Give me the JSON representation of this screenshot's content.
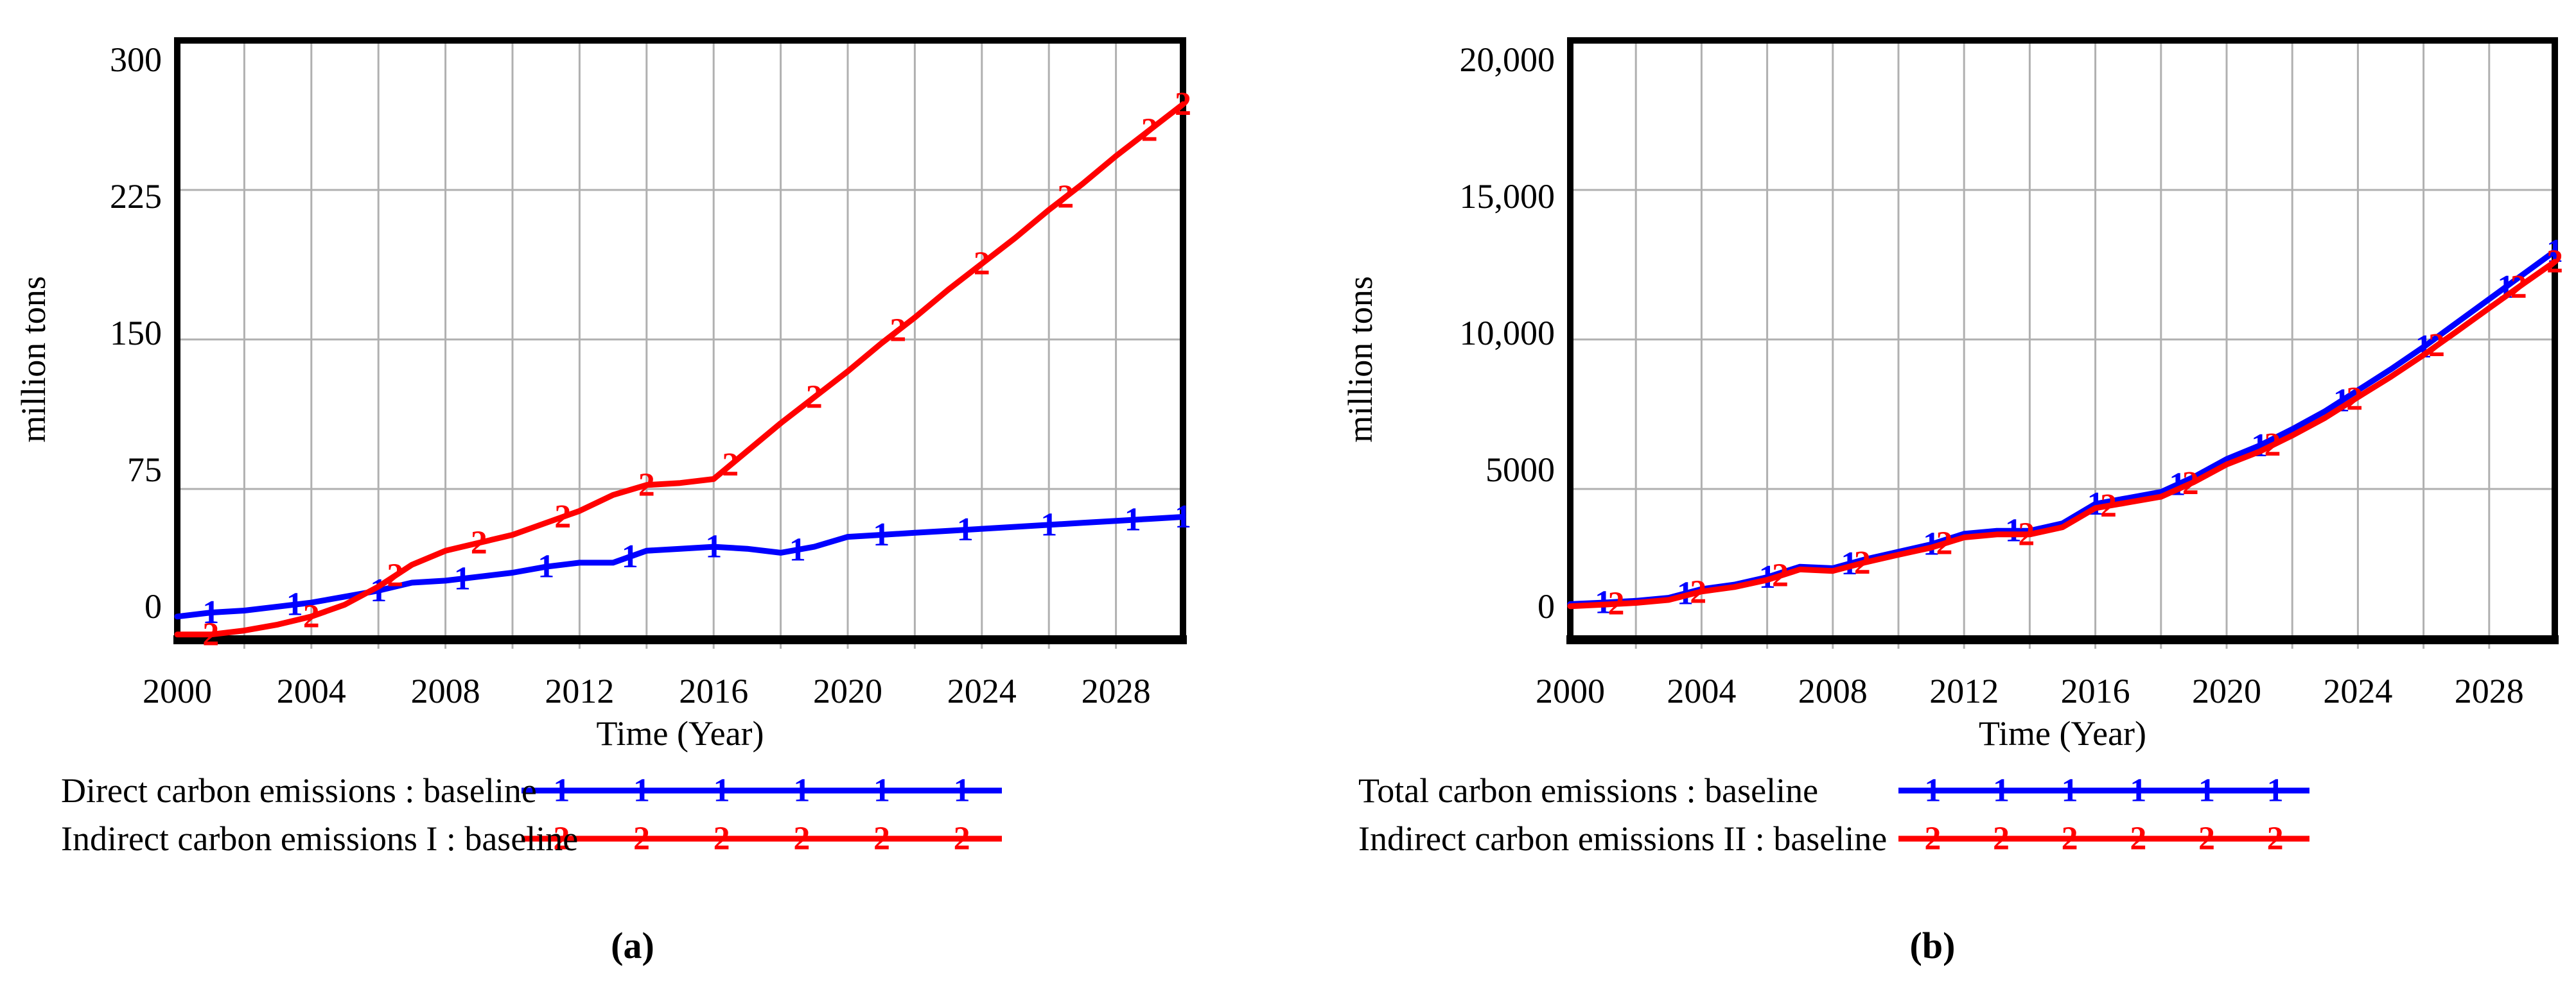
{
  "chart_data": [
    {
      "type": "line",
      "panel": "a",
      "caption": "(a)",
      "xlabel": "Time (Year)",
      "ylabel": "million tons",
      "xlim": [
        2000,
        2030
      ],
      "ylim": [
        0,
        300
      ],
      "grid": {
        "x_step_years": 2,
        "y_lines": [
          75,
          150,
          225
        ],
        "color": "#b0b0b0"
      },
      "x_tick_values": [
        2000,
        2004,
        2008,
        2012,
        2016,
        2020,
        2024,
        2028
      ],
      "x_tick_labels": [
        "2000",
        "2004",
        "2008",
        "2012",
        "2016",
        "2020",
        "2024",
        "2028"
      ],
      "y_tick_values": [
        0,
        75,
        150,
        225,
        300
      ],
      "y_tick_labels": [
        "0",
        "75",
        "150",
        "225",
        "300"
      ],
      "legend_position": "bottom-left",
      "x": [
        2000,
        2001,
        2002,
        2003,
        2004,
        2005,
        2006,
        2007,
        2008,
        2009,
        2010,
        2011,
        2012,
        2013,
        2014,
        2015,
        2016,
        2017,
        2018,
        2019,
        2020,
        2021,
        2022,
        2023,
        2024,
        2025,
        2026,
        2027,
        2028,
        2029,
        2030
      ],
      "series": [
        {
          "name": "Direct carbon emissions : baseline",
          "color": "#0000ff",
          "marker": "1",
          "marker_years": [
            2001,
            2003.5,
            2006,
            2008.5,
            2011,
            2013.5,
            2016,
            2018.5,
            2021,
            2023.5,
            2026,
            2028.5,
            2030
          ],
          "values": [
            11,
            13,
            14,
            16,
            18,
            21,
            24,
            28,
            29,
            31,
            33,
            36,
            38,
            38,
            44,
            45,
            46,
            45,
            43,
            46,
            51,
            52,
            53,
            54,
            55,
            56,
            57,
            58,
            59,
            60,
            61
          ]
        },
        {
          "name": "Indirect carbon emissions I : baseline",
          "color": "#ff0000",
          "marker": "2",
          "marker_years": [
            2001,
            2004,
            2006.5,
            2009,
            2011.5,
            2014,
            2016.5,
            2019,
            2021.5,
            2024,
            2026.5,
            2029,
            2030
          ],
          "values": [
            2,
            2,
            4,
            7,
            11,
            17,
            26,
            37,
            44,
            48,
            52,
            58,
            64,
            72,
            77,
            78,
            80,
            94,
            108,
            121,
            134,
            148,
            161,
            175,
            188,
            201,
            215,
            228,
            242,
            255,
            268
          ]
        }
      ]
    },
    {
      "type": "line",
      "panel": "b",
      "caption": "(b)",
      "xlabel": "Time (Year)",
      "ylabel": "million tons",
      "xlim": [
        2000,
        2030
      ],
      "ylim": [
        0,
        20000
      ],
      "grid": {
        "x_step_years": 2,
        "y_lines": [
          5000,
          10000,
          15000
        ],
        "color": "#b0b0b0"
      },
      "x_tick_values": [
        2000,
        2004,
        2008,
        2012,
        2016,
        2020,
        2024,
        2028
      ],
      "x_tick_labels": [
        "2000",
        "2004",
        "2008",
        "2012",
        "2016",
        "2020",
        "2024",
        "2028"
      ],
      "y_tick_values": [
        0,
        5000,
        10000,
        15000,
        20000
      ],
      "y_tick_labels": [
        "0",
        "5000",
        "10,000",
        "15,000",
        "20,000"
      ],
      "legend_position": "bottom-left",
      "x": [
        2000,
        2001,
        2002,
        2003,
        2004,
        2005,
        2006,
        2007,
        2008,
        2009,
        2010,
        2011,
        2012,
        2013,
        2014,
        2015,
        2016,
        2017,
        2018,
        2019,
        2020,
        2021,
        2022,
        2023,
        2024,
        2025,
        2026,
        2027,
        2028,
        2029,
        2030
      ],
      "series": [
        {
          "name": "Total carbon emissions : baseline",
          "color": "#0000ff",
          "marker": "1",
          "marker_years": [
            2001,
            2003.5,
            2006,
            2008.5,
            2011,
            2013.5,
            2016,
            2018.5,
            2021,
            2023.5,
            2026,
            2028.5,
            2030
          ],
          "values": [
            1150,
            1200,
            1260,
            1360,
            1650,
            1800,
            2050,
            2400,
            2350,
            2650,
            2900,
            3150,
            3500,
            3600,
            3600,
            3850,
            4500,
            4700,
            4900,
            5400,
            6000,
            6450,
            7000,
            7600,
            8300,
            9000,
            9750,
            10550,
            11350,
            12150,
            12950
          ]
        },
        {
          "name": "Indirect carbon emissions II : baseline",
          "color": "#ff0000",
          "marker": "2",
          "marker_years": [
            2001.4,
            2003.9,
            2006.4,
            2008.9,
            2011.4,
            2013.9,
            2016.4,
            2018.9,
            2021.4,
            2023.9,
            2026.4,
            2028.9,
            2030
          ],
          "values": [
            1080,
            1130,
            1190,
            1290,
            1570,
            1720,
            1960,
            2310,
            2260,
            2550,
            2800,
            3040,
            3380,
            3480,
            3480,
            3720,
            4360,
            4550,
            4740,
            5230,
            5820,
            6250,
            6790,
            7380,
            8070,
            8750,
            9480,
            10260,
            11050,
            11830,
            12600
          ]
        }
      ]
    }
  ]
}
